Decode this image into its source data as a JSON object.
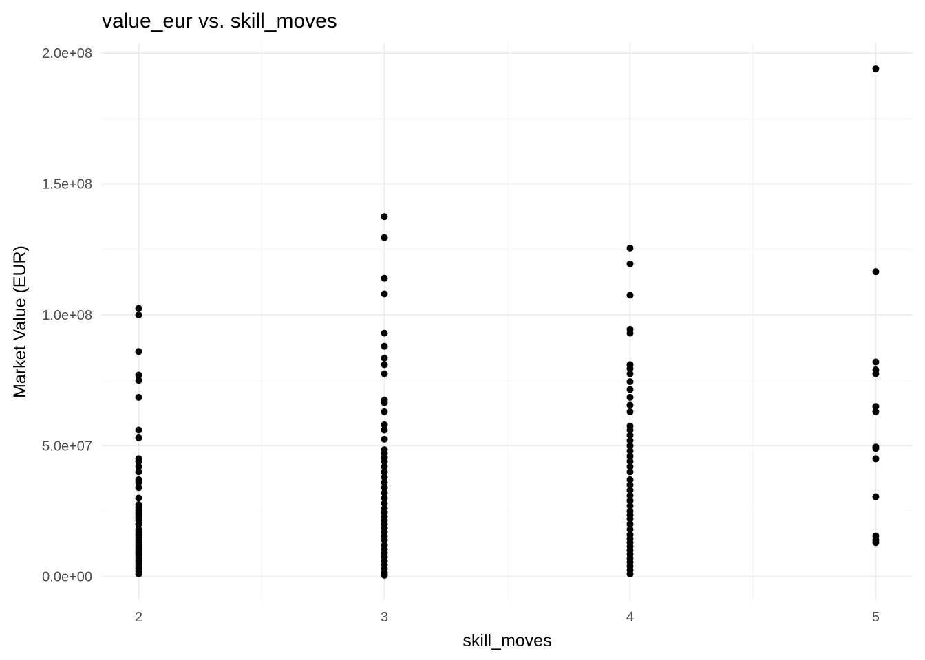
{
  "chart_data": {
    "type": "scatter",
    "title": "value_eur vs. skill_moves",
    "xlabel": "skill_moves",
    "ylabel": "Market Value (EUR)",
    "xlim": [
      1.85,
      5.15
    ],
    "ylim": [
      -9000000,
      204000000
    ],
    "x_ticks": [
      2,
      3,
      4,
      5
    ],
    "x_tick_labels": [
      "2",
      "3",
      "4",
      "5"
    ],
    "y_ticks": [
      0,
      50000000,
      100000000,
      150000000,
      200000000
    ],
    "y_tick_labels": [
      "0.0e+00",
      "5.0e+07",
      "1.0e+08",
      "1.5e+08",
      "2.0e+08"
    ],
    "grid": true,
    "legend": "none",
    "point_color": "#000000",
    "series": [
      {
        "x": 2,
        "values": [
          102500000,
          100000000,
          86000000,
          77000000,
          75000000,
          68500000,
          56000000,
          53000000,
          45000000,
          44000000,
          42000000,
          40000000,
          37000000,
          36000000,
          34000000,
          30000000,
          27500000,
          26500000,
          25500000,
          24500000,
          23500000,
          22500000,
          21500000,
          20000000,
          18000000,
          17000000,
          16000000,
          15000000,
          14000000,
          13000000,
          12000000,
          11000000,
          10000000,
          9000000,
          8000000,
          7000000,
          6000000,
          5000000,
          4000000,
          3000000,
          2000000,
          1000000
        ]
      },
      {
        "x": 3,
        "values": [
          137500000,
          129500000,
          114000000,
          108000000,
          93000000,
          88000000,
          83500000,
          81000000,
          77500000,
          67500000,
          66500000,
          63000000,
          58000000,
          56000000,
          52500000,
          48500000,
          47000000,
          45500000,
          44000000,
          42000000,
          40000000,
          38000000,
          36000000,
          34000000,
          32000000,
          30000000,
          28000000,
          26000000,
          24500000,
          23000000,
          21500000,
          20000000,
          18500000,
          17000000,
          15500000,
          14000000,
          12000000,
          10500000,
          9000000,
          7500000,
          6000000,
          4500000,
          3000000,
          1500000,
          500000
        ]
      },
      {
        "x": 4,
        "values": [
          125500000,
          119500000,
          107500000,
          94500000,
          93000000,
          81000000,
          79500000,
          77500000,
          74500000,
          71500000,
          68500000,
          65500000,
          63000000,
          57500000,
          56000000,
          54000000,
          52000000,
          50000000,
          48000000,
          46000000,
          44000000,
          42000000,
          40000000,
          37000000,
          35000000,
          33000000,
          31000000,
          29000000,
          27000000,
          25000000,
          23500000,
          22000000,
          20000000,
          18000000,
          16000000,
          14500000,
          13000000,
          11500000,
          10000000,
          8500000,
          7000000,
          5500000,
          4000000,
          2500000,
          1000000
        ]
      },
      {
        "x": 5,
        "values": [
          194000000,
          116500000,
          82000000,
          79000000,
          77500000,
          65000000,
          63000000,
          49500000,
          49000000,
          45000000,
          30500000,
          15500000,
          14000000,
          13000000
        ]
      }
    ]
  }
}
